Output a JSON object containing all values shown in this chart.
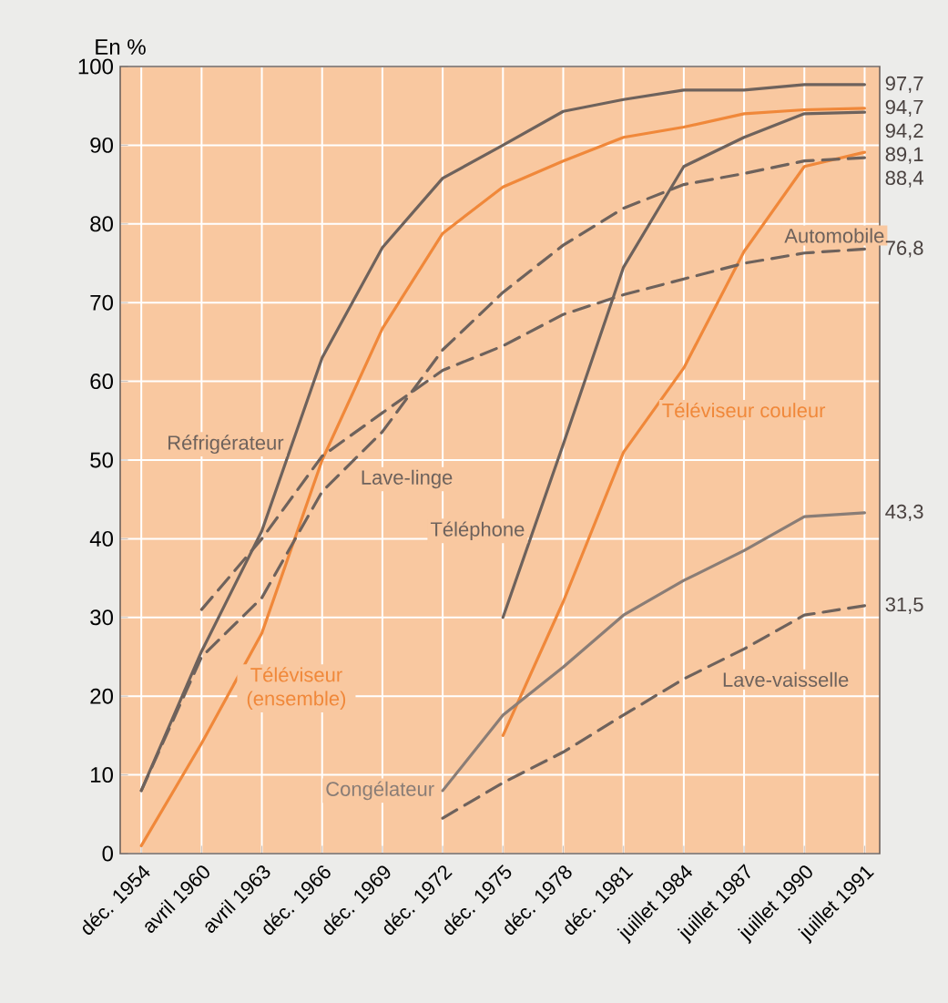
{
  "chart_data": {
    "type": "line",
    "ylabel": "En %",
    "categories": [
      "déc. 1954",
      "avril 1960",
      "avril 1963",
      "déc. 1966",
      "déc. 1969",
      "déc. 1972",
      "déc. 1975",
      "déc. 1978",
      "déc. 1981",
      "juillet 1984",
      "juillet 1987",
      "juillet 1990",
      "juillet 1991"
    ],
    "ylim": [
      0,
      100
    ],
    "yticks": [
      0,
      10,
      20,
      30,
      40,
      50,
      60,
      70,
      80,
      90,
      100
    ],
    "grid": true,
    "legend": false,
    "series": [
      {
        "name": "Réfrigérateur",
        "color": "#6e625c",
        "line_style": "solid",
        "values": [
          8,
          25.7,
          41,
          63,
          77,
          85.8,
          90,
          94.3,
          95.8,
          97,
          97,
          97.7,
          97.7
        ],
        "value_labels": [
          null,
          null,
          null,
          null,
          null,
          null,
          null,
          null,
          null,
          null,
          null,
          null,
          "97,7"
        ]
      },
      {
        "name": "Téléviseur (ensemble)",
        "color": "#f0883a",
        "line_style": "solid",
        "values": [
          1,
          14,
          28,
          50,
          66.7,
          78.8,
          84.7,
          88,
          91,
          92.3,
          94,
          94.5,
          94.7
        ],
        "value_labels": [
          null,
          null,
          null,
          null,
          null,
          null,
          null,
          null,
          null,
          null,
          null,
          null,
          "94,7"
        ]
      },
      {
        "name": "Téléphone",
        "color": "#6e625c",
        "line_style": "solid",
        "values": [
          null,
          null,
          null,
          null,
          null,
          null,
          30,
          52,
          74.5,
          87.3,
          91,
          94,
          94.2
        ],
        "value_labels": [
          null,
          null,
          null,
          null,
          null,
          null,
          null,
          null,
          null,
          null,
          null,
          null,
          "94,2"
        ]
      },
      {
        "name": "Téléviseur couleur",
        "color": "#f0883a",
        "line_style": "solid",
        "values": [
          null,
          null,
          null,
          null,
          null,
          null,
          15,
          32,
          51,
          61.7,
          76.5,
          87.3,
          89.1
        ],
        "value_labels": [
          null,
          null,
          null,
          null,
          null,
          null,
          null,
          null,
          null,
          null,
          null,
          null,
          "89,1"
        ]
      },
      {
        "name": "Lave-linge",
        "color": "#6e625c",
        "line_style": "dashed",
        "values": [
          8,
          25,
          32.5,
          46,
          53.6,
          64,
          71.3,
          77.3,
          82,
          85,
          86.4,
          88,
          88.4
        ],
        "value_labels": [
          null,
          null,
          null,
          null,
          null,
          null,
          null,
          null,
          null,
          null,
          null,
          null,
          "88,4"
        ]
      },
      {
        "name": "Automobile",
        "color": "#6e625c",
        "line_style": "dashed",
        "values": [
          null,
          31,
          40,
          50.5,
          56,
          61.4,
          64.5,
          68.5,
          71,
          73,
          75,
          76.3,
          76.8
        ],
        "value_labels": [
          null,
          null,
          null,
          null,
          null,
          null,
          null,
          null,
          null,
          null,
          null,
          null,
          "76,8"
        ]
      },
      {
        "name": "Congélateur",
        "color": "#8a7d76",
        "line_style": "solid",
        "values": [
          null,
          null,
          null,
          null,
          null,
          8,
          17.6,
          23.7,
          30.3,
          34.7,
          38.5,
          42.8,
          43.3
        ],
        "value_labels": [
          null,
          null,
          null,
          null,
          null,
          null,
          null,
          null,
          null,
          null,
          null,
          null,
          "43,3"
        ]
      },
      {
        "name": "Lave-vaisselle",
        "color": "#6e625c",
        "line_style": "dashed",
        "values": [
          null,
          null,
          null,
          null,
          null,
          4.5,
          9,
          12.9,
          17.6,
          22.2,
          26,
          30.3,
          31.5
        ],
        "value_labels": [
          null,
          null,
          null,
          null,
          null,
          null,
          null,
          null,
          null,
          null,
          null,
          null,
          "31,5"
        ]
      }
    ]
  }
}
